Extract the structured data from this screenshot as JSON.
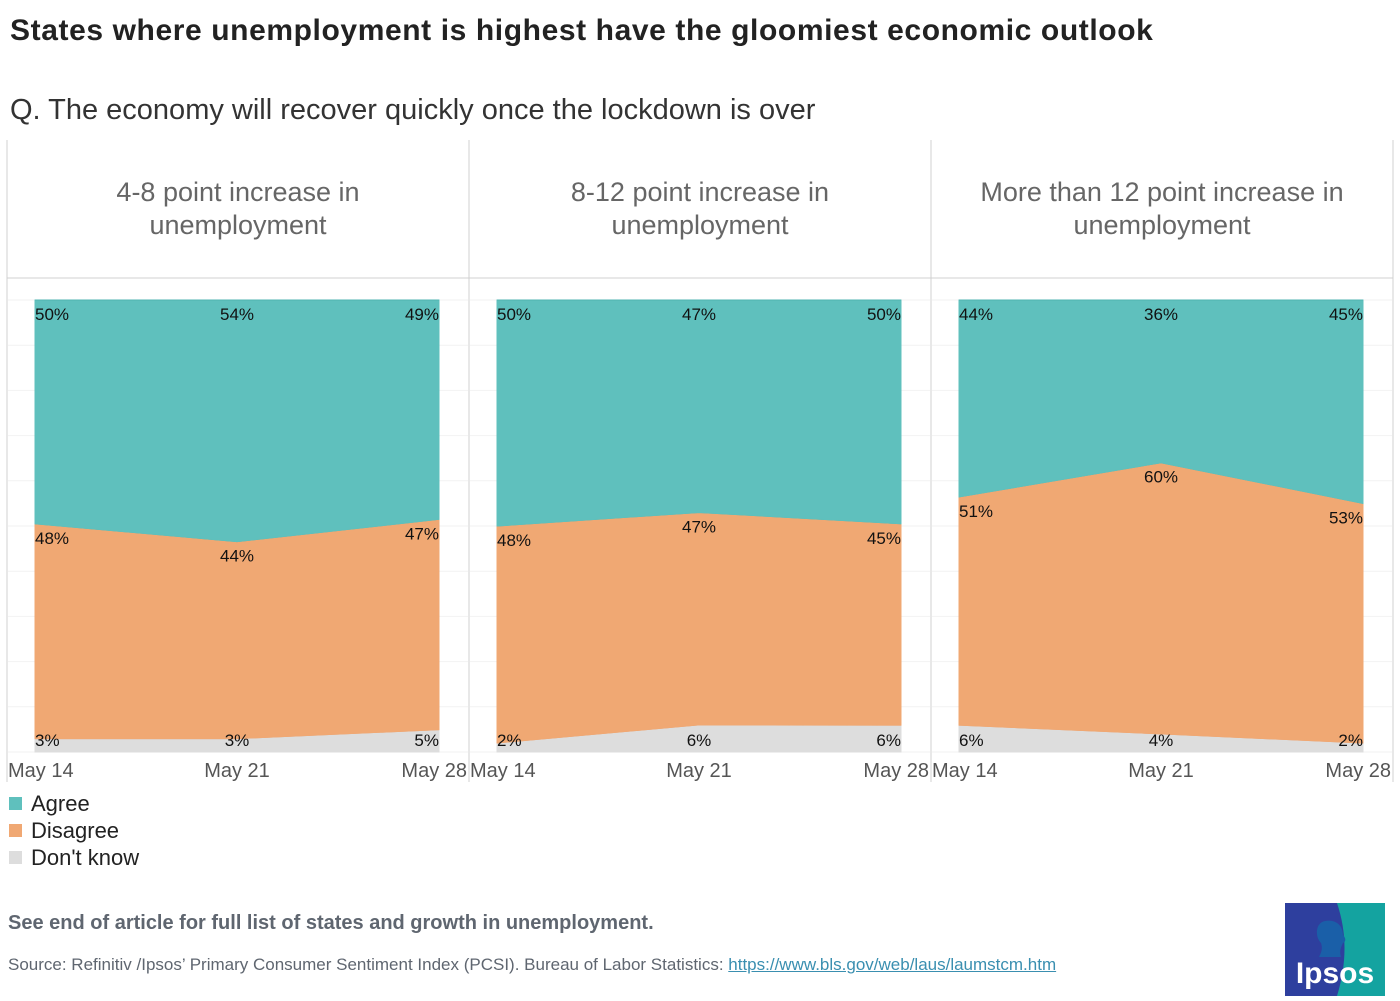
{
  "title": "States where unemployment is highest have the gloomiest economic outlook",
  "subtitle": "Q. The economy will recover quickly once the lockdown is over",
  "legend": [
    {
      "label": "Agree",
      "color": "#5fc0bd"
    },
    {
      "label": "Disagree",
      "color": "#f0a873"
    },
    {
      "label": "Don't know",
      "color": "#dddddd"
    }
  ],
  "chart_data": {
    "type": "area",
    "stacked": true,
    "categories": [
      "May 14",
      "May 21",
      "May 28"
    ],
    "ylim": [
      0,
      100
    ],
    "grid": true,
    "legend_placement": "bottom-left",
    "panels": [
      {
        "title": "4-8 point increase in unemployment",
        "series": [
          {
            "name": "Agree",
            "values": [
              50,
              54,
              49
            ]
          },
          {
            "name": "Disagree",
            "values": [
              48,
              44,
              47
            ]
          },
          {
            "name": "Don't know",
            "values": [
              3,
              3,
              5
            ]
          }
        ]
      },
      {
        "title": "8-12 point increase in unemployment",
        "series": [
          {
            "name": "Agree",
            "values": [
              50,
              47,
              50
            ]
          },
          {
            "name": "Disagree",
            "values": [
              48,
              47,
              45
            ]
          },
          {
            "name": "Don't know",
            "values": [
              2,
              6,
              6
            ]
          }
        ]
      },
      {
        "title": "More than 12 point increase in unemployment",
        "series": [
          {
            "name": "Agree",
            "values": [
              44,
              36,
              45
            ]
          },
          {
            "name": "Disagree",
            "values": [
              51,
              60,
              53
            ]
          },
          {
            "name": "Don't know",
            "values": [
              6,
              4,
              2
            ]
          }
        ]
      }
    ]
  },
  "footer": {
    "note": "See end of article for full list of states and growth in unemployment.",
    "source_prefix": "Source: Refinitiv /Ipsos’ Primary Consumer Sentiment Index (PCSI). Bureau of Labor Statistics: ",
    "source_link": "https://www.bls.gov/web/laus/laumstcm.htm"
  },
  "logo": {
    "text": "Ipsos",
    "colors": [
      "#2e3f9e",
      "#14a3a0"
    ]
  }
}
